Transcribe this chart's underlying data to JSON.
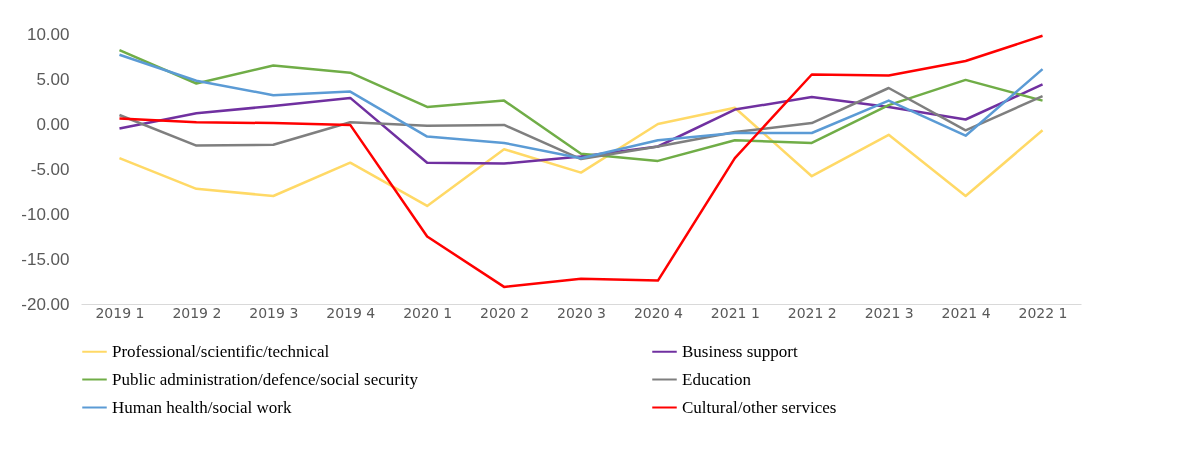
{
  "chart_data": {
    "type": "line",
    "categories": [
      "2019 1",
      "2019 2",
      "2019 3",
      "2019 4",
      "2020 1",
      "2020 2",
      "2020 3",
      "2020 4",
      "2021 1",
      "2021 2",
      "2021 3",
      "2021 4",
      "2022 1"
    ],
    "ylim": [
      -20,
      10
    ],
    "yticks": [
      {
        "value": -20,
        "label": "-20.00"
      },
      {
        "value": -15,
        "label": "-15.00"
      },
      {
        "value": -10,
        "label": "-10.00"
      },
      {
        "value": -5,
        "label": "-5.00"
      },
      {
        "value": 0,
        "label": "0.00"
      },
      {
        "value": 5,
        "label": "5.00"
      },
      {
        "value": 10,
        "label": "10.00"
      }
    ],
    "grid": false,
    "legend": "bottom",
    "marker": "none",
    "line_style": "solid",
    "series": [
      {
        "name": "Professional/scientific/technical",
        "color": "#ffd966",
        "values": [
          -3.8,
          -7.2,
          -8.0,
          -4.3,
          -9.1,
          -2.8,
          -5.4,
          0.0,
          1.8,
          -5.8,
          -1.2,
          -8.0,
          -0.7
        ]
      },
      {
        "name": "Business support",
        "color": "#7030a0",
        "values": [
          -0.5,
          1.2,
          2.0,
          2.9,
          -4.3,
          -4.4,
          -3.6,
          -2.5,
          1.6,
          3.0,
          1.9,
          0.5,
          4.4
        ]
      },
      {
        "name": "Public administration/defence/social security",
        "color": "#70ad47",
        "values": [
          8.2,
          4.5,
          6.5,
          5.7,
          1.9,
          2.6,
          -3.3,
          -4.1,
          -1.8,
          -2.1,
          2.1,
          4.9,
          2.6
        ]
      },
      {
        "name": "Education",
        "color": "#7f7f7f",
        "values": [
          1.0,
          -2.4,
          -2.3,
          0.2,
          -0.2,
          -0.1,
          -3.9,
          -2.5,
          -0.9,
          0.1,
          4.0,
          -0.7,
          3.1
        ]
      },
      {
        "name": "Human health/social work",
        "color": "#5b9bd5",
        "values": [
          7.7,
          4.8,
          3.2,
          3.6,
          -1.4,
          -2.1,
          -3.8,
          -1.8,
          -1.0,
          -1.0,
          2.6,
          -1.3,
          6.1
        ]
      },
      {
        "name": "Cultural/other services",
        "color": "#ff0000",
        "values": [
          0.6,
          0.2,
          0.1,
          -0.1,
          -12.5,
          -18.1,
          -17.2,
          -17.4,
          -3.8,
          5.5,
          5.4,
          7.0,
          9.8
        ]
      }
    ]
  }
}
